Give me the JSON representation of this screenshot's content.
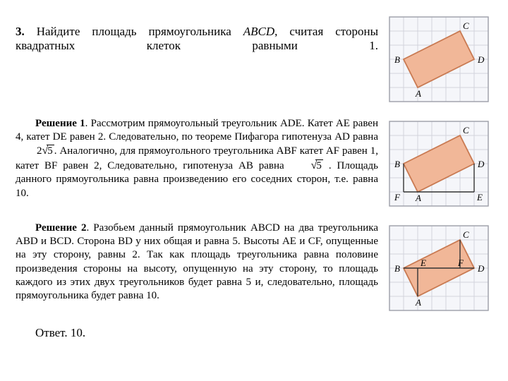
{
  "problem": {
    "number": "3.",
    "text_before_abcd": "Найдите площадь прямоугольника ",
    "abcd": "ABCD",
    "text_after_abcd": ", считая стороны квадратных клеток равными 1."
  },
  "solution1": {
    "label": "Решение 1",
    "text": ". Рассмотрим прямоугольный треугольник ADE. Катет AE равен 4, катет DE равен 2. Следовательно, по теореме Пифагора гипотенуза AD равна ",
    "sqrt1_coef": "2",
    "sqrt1_rad": "5",
    "text2": ". Аналогично, для прямоугольного треугольника ABF катет AF равен 1, катет BF равен 2, Следовательно, гипотенуза AB равна ",
    "sqrt2_rad": "5",
    "text3": " . Площадь данного прямоугольника равна произведению его соседних сторон, т.е. равна 10."
  },
  "solution2": {
    "label": "Решение 2",
    "text": ". Разобьем данный прямоугольник ABCD на два треугольника ABD и BCD. Сторона BD у них общая и равна 5. Высоты AE и CF, опущенные на эту сторону, равны 2. Так как площадь треугольника равна половине произведения стороны на высоту, опущенную на эту сторону, то площадь каждого из этих двух треугольников будет равна 5 и, следовательно, площадь прямоугольника будет равна 10."
  },
  "answer": {
    "label": "Ответ.",
    "value": "10."
  },
  "figure": {
    "grid_cols": 7,
    "grid_rows": 6,
    "cell": 20,
    "bg": "#f5f6fa",
    "grid_color": "#d2d4dc",
    "border": "#9c9ea8",
    "rect_fill": "#f1b798",
    "rect_stroke": "#c97a52",
    "aux_stroke": "#333333",
    "label_color": "#000000",
    "label_font": "italic 13px 'Times New Roman'",
    "A": [
      2,
      5
    ],
    "B": [
      1,
      3
    ],
    "C": [
      5,
      1
    ],
    "D": [
      6,
      3
    ],
    "fig2": {
      "E": [
        6,
        5
      ],
      "F": [
        1,
        5
      ]
    },
    "fig3": {
      "E": [
        2,
        3
      ],
      "F": [
        5,
        3
      ]
    }
  }
}
